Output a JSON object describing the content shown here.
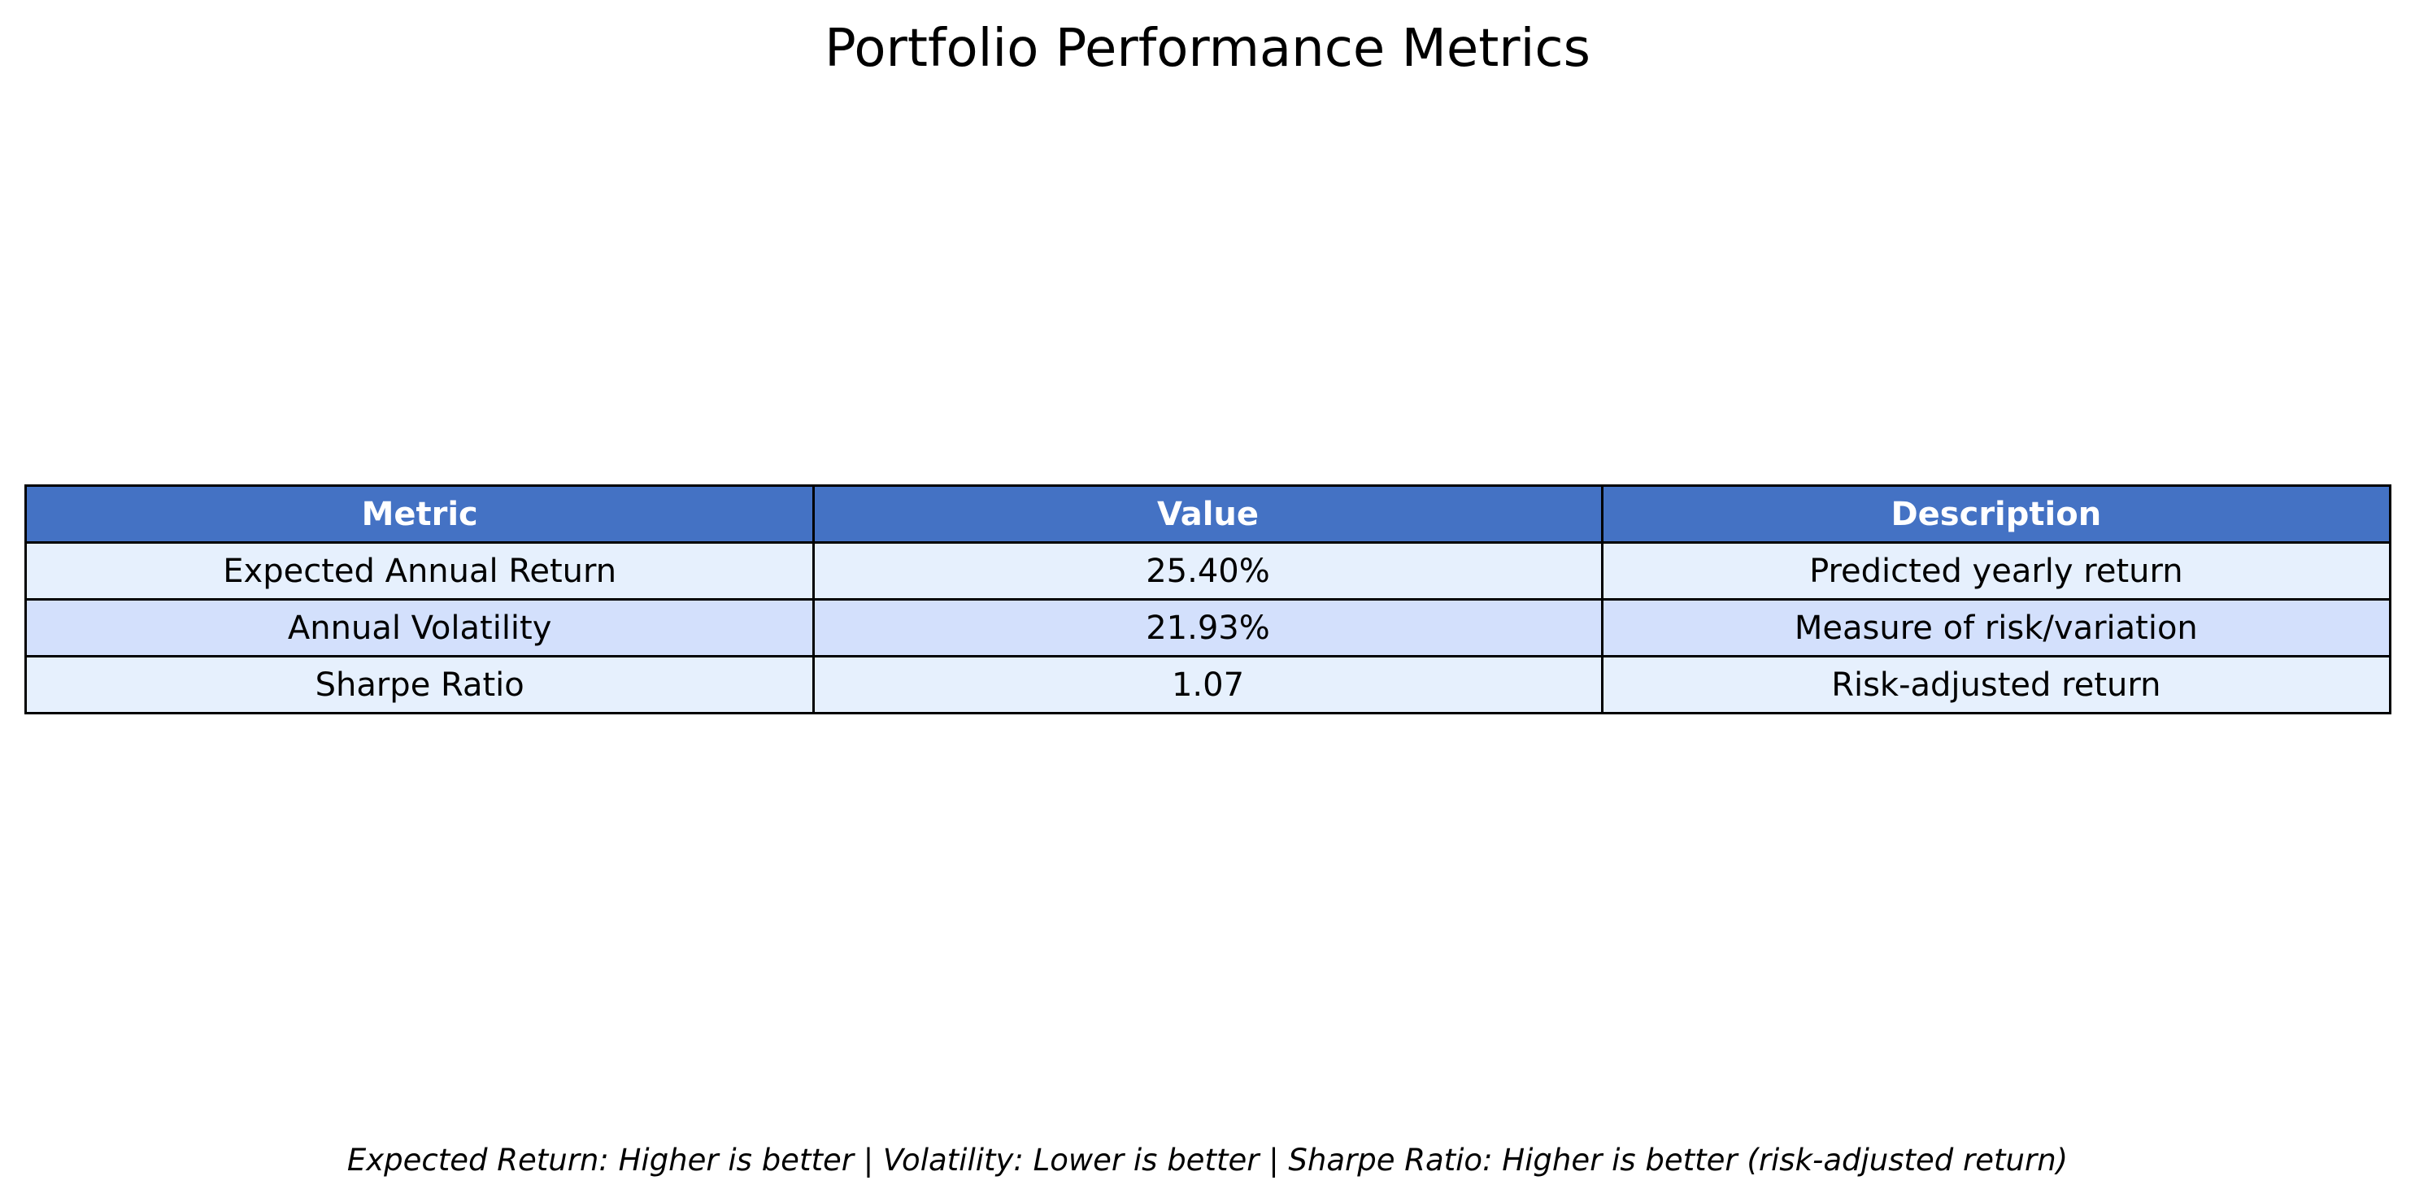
{
  "title": "Portfolio Performance Metrics",
  "footer_note": "Expected Return: Higher is better | Volatility: Lower is better | Sharpe Ratio: Higher is better (risk-adjusted return)",
  "colors": {
    "header_bg": "#4472C4",
    "header_text": "#FFFFFF",
    "row_light": "#E6F0FD",
    "row_dark": "#D3E0FC",
    "border": "#000000"
  },
  "chart_data": {
    "type": "table",
    "title": "Portfolio Performance Metrics",
    "columns": [
      "Metric",
      "Value",
      "Description"
    ],
    "rows": [
      [
        "Expected Annual Return",
        "25.40%",
        "Predicted yearly return"
      ],
      [
        "Annual Volatility",
        "21.93%",
        "Measure of risk/variation"
      ],
      [
        "Sharpe Ratio",
        "1.07",
        "Risk-adjusted return"
      ]
    ]
  }
}
